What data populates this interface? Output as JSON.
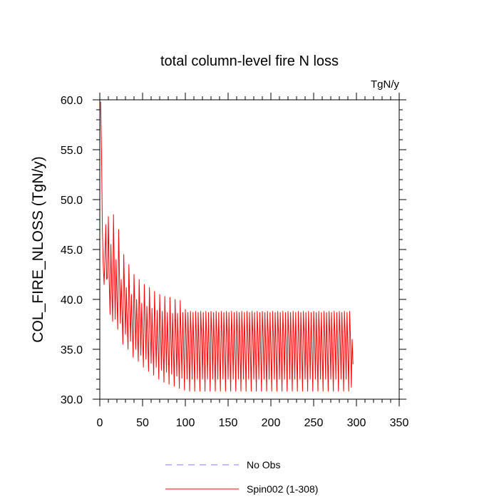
{
  "chart_data": {
    "type": "line",
    "title": "total column-level fire N loss",
    "units_label": "TgN/y",
    "xlabel": "",
    "ylabel": "COL_FIRE_NLOSS  (TgN/y)",
    "xlim": [
      0,
      350
    ],
    "ylim": [
      30,
      60
    ],
    "x_ticks": [
      0,
      50,
      100,
      150,
      200,
      250,
      300,
      350
    ],
    "x_tick_labels": [
      "0",
      "50",
      "100",
      "150",
      "200",
      "250",
      "300",
      "350"
    ],
    "y_ticks": [
      30,
      35,
      40,
      45,
      50,
      55,
      60
    ],
    "y_tick_labels": [
      "30.0",
      "35.0",
      "40.0",
      "45.0",
      "50.0",
      "55.0",
      "60.0"
    ],
    "grid": false,
    "legend_position": "bottom",
    "series": [
      {
        "name": "No Obs",
        "color": "#7f7fff",
        "style": "dashed",
        "x": [],
        "values": []
      },
      {
        "name": "Spin002 (1-308)",
        "color": "#ff0000",
        "style": "solid",
        "x_start": 1,
        "x_step": 1,
        "values": [
          59.8,
          55.0,
          47.0,
          43.5,
          41.5,
          44.0,
          47.5,
          42.0,
          42.2,
          48.3,
          41.8,
          38.5,
          45.5,
          41.0,
          37.8,
          48.5,
          43.0,
          38.0,
          44.0,
          40.2,
          37.0,
          47.0,
          42.5,
          37.6,
          42.0,
          38.8,
          35.5,
          44.5,
          40.5,
          36.5,
          41.2,
          38.0,
          35.0,
          43.5,
          39.5,
          35.8,
          40.5,
          37.2,
          34.2,
          42.5,
          38.8,
          35.0,
          40.0,
          36.8,
          33.8,
          42.0,
          38.3,
          34.4,
          39.6,
          36.3,
          33.2,
          41.5,
          37.8,
          34.0,
          39.3,
          36.0,
          32.8,
          41.2,
          37.4,
          33.6,
          39.1,
          35.7,
          32.4,
          40.8,
          37.0,
          33.2,
          38.9,
          35.5,
          32.0,
          40.5,
          36.8,
          32.9,
          38.8,
          35.3,
          31.7,
          40.3,
          36.6,
          32.7,
          38.7,
          35.2,
          31.5,
          40.2,
          36.5,
          32.5,
          38.6,
          35.1,
          31.3,
          40.0,
          36.4,
          32.3,
          38.6,
          35.0,
          31.1,
          39.9,
          36.3,
          32.1,
          38.7,
          35.0,
          30.9,
          39.0,
          36.3,
          32.0,
          38.7,
          35.0,
          30.8,
          38.8,
          36.3,
          32.0,
          38.7,
          35.0,
          30.8,
          38.8,
          36.3,
          32.0,
          38.7,
          35.0,
          30.8,
          38.8,
          36.3,
          32.0,
          38.7,
          35.0,
          30.8,
          38.8,
          36.3,
          32.0,
          38.7,
          35.0,
          30.8,
          38.8,
          36.3,
          32.0,
          38.7,
          35.0,
          30.8,
          38.8,
          36.3,
          32.0,
          38.7,
          35.0,
          30.8,
          38.8,
          36.3,
          32.0,
          38.7,
          35.0,
          30.8,
          38.8,
          36.3,
          32.0,
          38.7,
          35.0,
          30.8,
          38.8,
          36.3,
          32.0,
          38.7,
          35.0,
          30.8,
          38.8,
          36.3,
          32.0,
          38.7,
          35.0,
          30.8,
          38.8,
          36.3,
          32.0,
          38.7,
          35.0,
          30.8,
          38.8,
          36.3,
          32.0,
          38.7,
          35.0,
          30.8,
          38.8,
          36.3,
          32.0,
          38.7,
          35.0,
          30.8,
          38.8,
          36.3,
          32.0,
          38.7,
          35.0,
          30.8,
          38.8,
          36.3,
          32.0,
          38.7,
          35.0,
          30.8,
          38.8,
          36.3,
          32.0,
          38.7,
          35.0,
          30.8,
          38.8,
          36.3,
          32.0,
          38.7,
          35.0,
          30.8,
          38.8,
          36.3,
          32.0,
          38.7,
          35.0,
          30.8,
          38.8,
          36.3,
          32.0,
          38.7,
          35.0,
          30.8,
          38.8,
          36.3,
          32.0,
          38.7,
          35.0,
          30.8,
          38.8,
          36.3,
          32.0,
          38.7,
          35.0,
          30.8,
          38.8,
          36.3,
          32.0,
          38.7,
          35.0,
          30.8,
          38.8,
          36.3,
          32.0,
          38.7,
          35.0,
          30.8,
          38.8,
          36.3,
          32.0,
          38.7,
          35.0,
          30.8,
          38.8,
          36.3,
          32.0,
          38.7,
          35.0,
          30.8,
          38.8,
          36.3,
          32.0,
          38.7,
          35.0,
          30.8,
          38.8,
          36.3,
          32.0,
          38.7,
          35.0,
          30.8,
          38.8,
          36.3,
          32.0,
          38.7,
          35.0,
          30.8,
          38.8,
          36.3,
          32.0,
          38.7,
          35.0,
          30.8,
          38.8,
          36.3,
          32.0,
          38.7,
          35.0,
          30.8,
          38.8,
          36.3,
          32.0,
          38.7,
          35.0,
          30.8,
          38.8,
          36.3,
          31.2,
          36.0,
          33.5
        ]
      }
    ]
  }
}
